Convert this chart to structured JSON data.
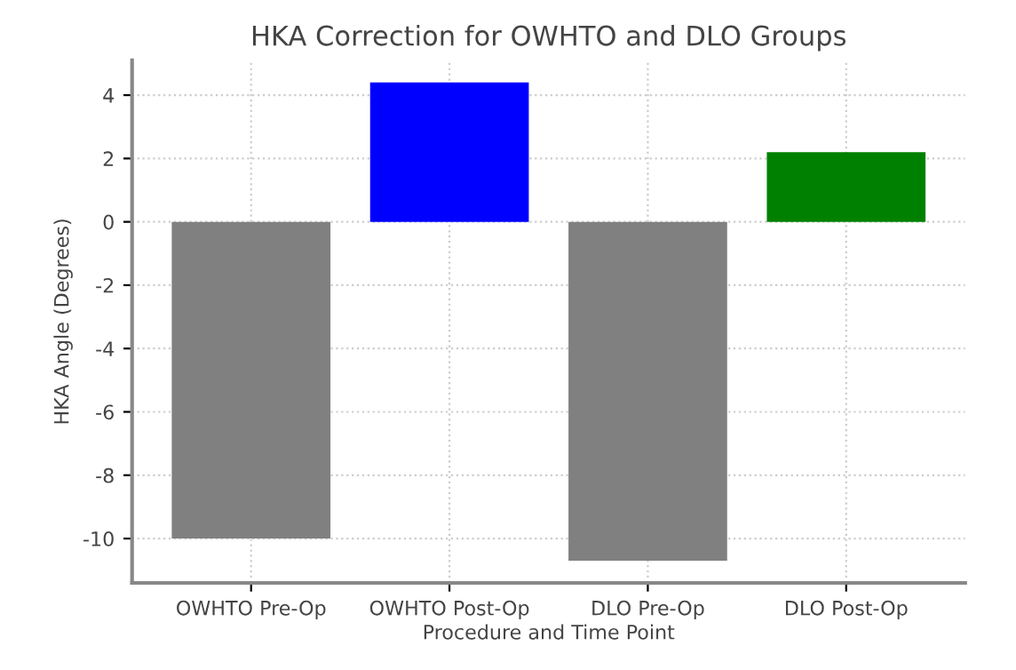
{
  "chart_data": {
    "type": "bar",
    "title": "HKA Correction for OWHTO and DLO Groups",
    "xlabel": "Procedure and Time Point",
    "ylabel": "HKA Angle (Degrees)",
    "categories": [
      "OWHTO Pre-Op",
      "OWHTO Post-Op",
      "DLO Pre-Op",
      "DLO Post-Op"
    ],
    "values": [
      -10.0,
      4.4,
      -10.7,
      2.2
    ],
    "colors": [
      "#808080",
      "#0000ff",
      "#808080",
      "#008000"
    ],
    "ylim": [
      -11.4,
      5.1
    ],
    "yticks": [
      -10,
      -8,
      -6,
      -4,
      -2,
      0,
      2,
      4
    ],
    "grid": true
  }
}
